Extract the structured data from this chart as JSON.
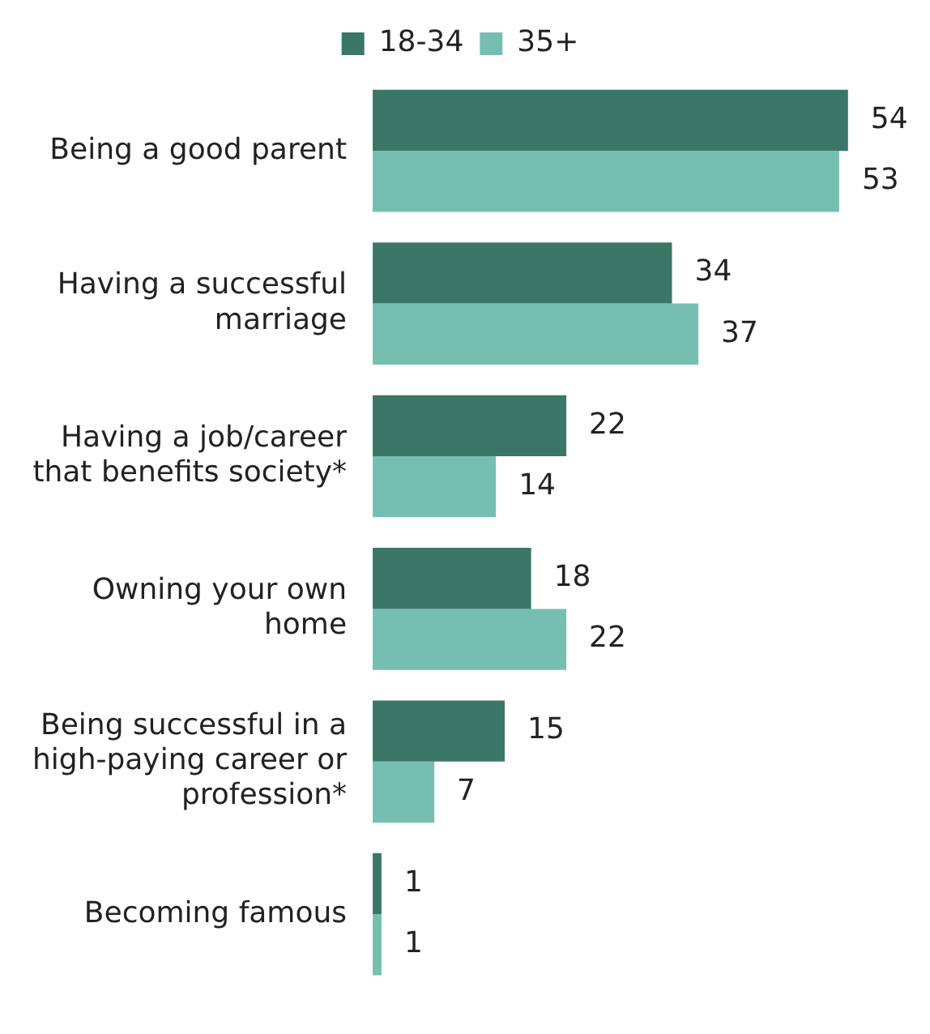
{
  "chart_data": {
    "type": "bar",
    "orientation": "horizontal",
    "categories": [
      "Being a good parent",
      "Having a successful marriage",
      "Having a job/career that benefits society*",
      "Owning your own home",
      "Being successful in a high-paying career or profession*",
      "Becoming famous"
    ],
    "series": [
      {
        "name": "18-34",
        "color": "#3a7767",
        "values": [
          54,
          34,
          22,
          18,
          15,
          1
        ]
      },
      {
        "name": "35+",
        "color": "#76bfb0",
        "values": [
          53,
          37,
          14,
          22,
          7,
          1
        ]
      }
    ],
    "data_labels": true,
    "legend": "top"
  }
}
